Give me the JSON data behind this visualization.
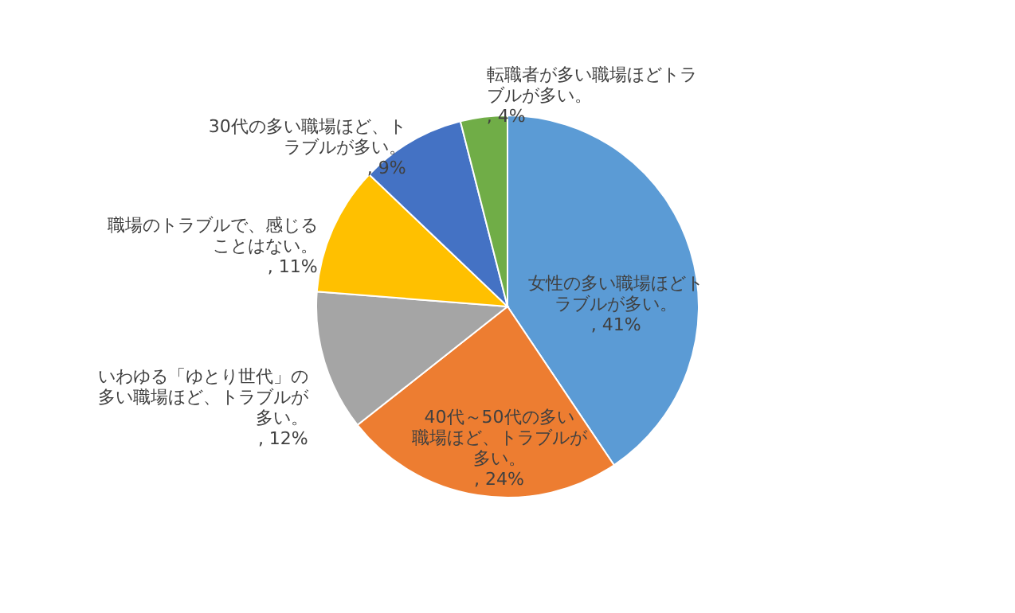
{
  "chart_data": {
    "type": "pie",
    "categories": [
      "女性の多い職場ほどトラブルが多い。",
      "40代～50代の多い職場ほど、トラブルが多い。",
      "いわゆる「ゆとり世代」の多い職場ほど、トラブルが多い。",
      "職場のトラブルで、感じることはない。",
      "30代の多い職場ほど、トラブルが多い。",
      "転職者が多い職場ほどトラブルが多い。"
    ],
    "values": [
      41,
      24,
      12,
      11,
      9,
      4
    ],
    "value_labels": [
      ", 41%",
      ", 24%",
      ", 12%",
      ", 11%",
      ", 9%",
      ", 4%"
    ],
    "colors": [
      "#5b9bd5",
      "#ed7d31",
      "#a5a5a5",
      "#ffc000",
      "#4472c4",
      "#70ad47"
    ],
    "legend": false
  }
}
